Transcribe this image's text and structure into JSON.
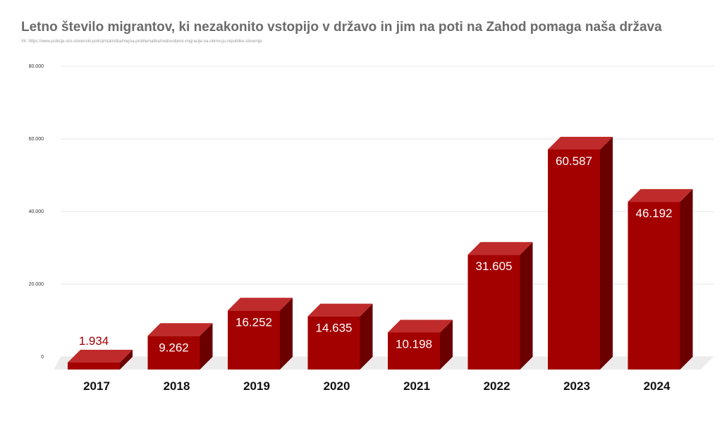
{
  "title": "Letno število migrantov, ki nezakonito vstopijo v državo in jim na poti na Zahod pomaga naša država",
  "source": "Vir: https://www.policija.si/o-slovenski-policiji/statistika/mejna-problematika/nedovoljene-migracije-na-obmocju-republike-slovenije",
  "colors": {
    "bar_front": "#a30000",
    "bar_top": "#bf2b2b",
    "bar_side": "#6a0000",
    "floor": "#ececec",
    "grid": "#e6e6e6"
  },
  "chart_data": {
    "type": "bar",
    "categories": [
      "2017",
      "2018",
      "2019",
      "2020",
      "2021",
      "2022",
      "2023",
      "2024"
    ],
    "values": [
      1934,
      9262,
      16252,
      14635,
      10198,
      31605,
      60587,
      46192
    ],
    "data_labels": [
      "1.934",
      "9.262",
      "16.252",
      "14.635",
      "10.198",
      "31.605",
      "60.587",
      "46.192"
    ],
    "yticks": [
      0,
      20000,
      40000,
      60000,
      80000
    ],
    "ytick_labels": [
      "0",
      "20.000",
      "40.000",
      "60.000",
      "80.000"
    ],
    "ylim": [
      0,
      80000
    ],
    "grid": true,
    "style": "3d"
  }
}
